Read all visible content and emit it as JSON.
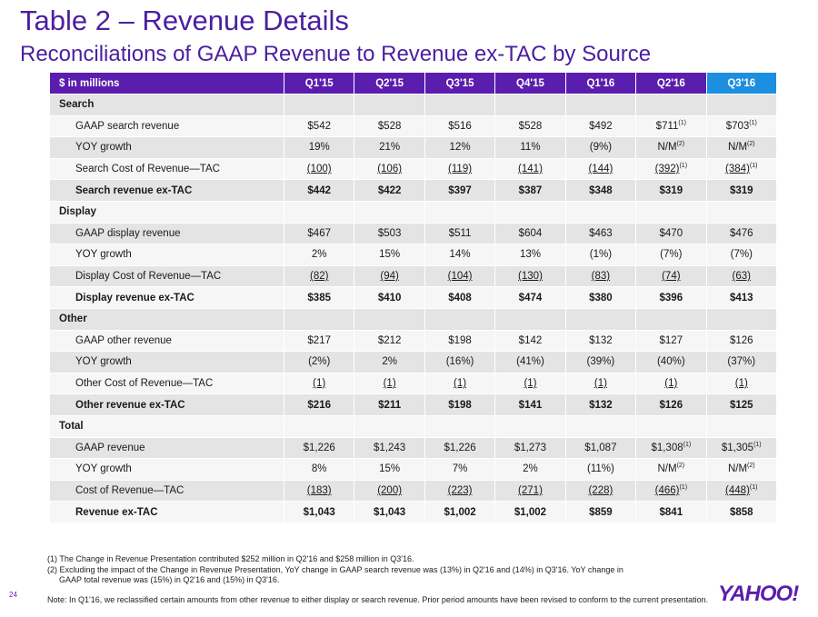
{
  "title": "Table 2 – Revenue Details",
  "subtitle": "Reconciliations of GAAP Revenue to Revenue ex-TAC by Source",
  "table": {
    "unit_label": "$ in millions",
    "columns": [
      "Q1'15",
      "Q2'15",
      "Q3'15",
      "Q4'15",
      "Q1'16",
      "Q2'16",
      "Q3'16"
    ],
    "highlight_color": "#1c8fe0",
    "header_color": "#5b1dae",
    "sections": [
      {
        "name": "Search",
        "rows": [
          {
            "label": "GAAP search revenue",
            "cells": [
              {
                "v": "$542"
              },
              {
                "v": "$528"
              },
              {
                "v": "$516"
              },
              {
                "v": "$528"
              },
              {
                "v": "$492"
              },
              {
                "v": "$711",
                "sup": "(1)"
              },
              {
                "v": "$703",
                "sup": "(1)"
              }
            ]
          },
          {
            "label": "YOY growth",
            "cells": [
              {
                "v": "19%"
              },
              {
                "v": "21%"
              },
              {
                "v": "12%"
              },
              {
                "v": "11%"
              },
              {
                "v": "(9%)"
              },
              {
                "v": "N/M",
                "sup": "(2)"
              },
              {
                "v": "N/M",
                "sup": "(2)"
              }
            ]
          },
          {
            "label": "Search Cost of Revenue—TAC",
            "underline": true,
            "cells": [
              {
                "v": "(100)"
              },
              {
                "v": "(106)"
              },
              {
                "v": "(119)"
              },
              {
                "v": "(141)"
              },
              {
                "v": "(144)"
              },
              {
                "v": "(392)",
                "sup": "(1)"
              },
              {
                "v": "(384)",
                "sup": "(1)"
              }
            ]
          },
          {
            "label": "Search revenue ex-TAC",
            "bold": true,
            "cells": [
              {
                "v": "$442"
              },
              {
                "v": "$422"
              },
              {
                "v": "$397"
              },
              {
                "v": "$387"
              },
              {
                "v": "$348"
              },
              {
                "v": "$319"
              },
              {
                "v": "$319"
              }
            ]
          }
        ]
      },
      {
        "name": "Display",
        "rows": [
          {
            "label": "GAAP display revenue",
            "cells": [
              {
                "v": "$467"
              },
              {
                "v": "$503"
              },
              {
                "v": "$511"
              },
              {
                "v": "$604"
              },
              {
                "v": "$463"
              },
              {
                "v": "$470"
              },
              {
                "v": "$476"
              }
            ]
          },
          {
            "label": "YOY growth",
            "cells": [
              {
                "v": "2%"
              },
              {
                "v": "15%"
              },
              {
                "v": "14%"
              },
              {
                "v": "13%"
              },
              {
                "v": "(1%)"
              },
              {
                "v": "(7%)"
              },
              {
                "v": "(7%)"
              }
            ]
          },
          {
            "label": "Display Cost of Revenue—TAC",
            "underline": true,
            "cells": [
              {
                "v": "(82)"
              },
              {
                "v": "(94)"
              },
              {
                "v": "(104)"
              },
              {
                "v": "(130)"
              },
              {
                "v": "(83)"
              },
              {
                "v": "(74)"
              },
              {
                "v": "(63)"
              }
            ]
          },
          {
            "label": "Display revenue ex-TAC",
            "bold": true,
            "cells": [
              {
                "v": "$385"
              },
              {
                "v": "$410"
              },
              {
                "v": "$408"
              },
              {
                "v": "$474"
              },
              {
                "v": "$380"
              },
              {
                "v": "$396"
              },
              {
                "v": "$413"
              }
            ]
          }
        ]
      },
      {
        "name": "Other",
        "rows": [
          {
            "label": "GAAP other revenue",
            "cells": [
              {
                "v": "$217"
              },
              {
                "v": "$212"
              },
              {
                "v": "$198"
              },
              {
                "v": "$142"
              },
              {
                "v": "$132"
              },
              {
                "v": "$127"
              },
              {
                "v": "$126"
              }
            ]
          },
          {
            "label": "YOY growth",
            "cells": [
              {
                "v": "(2%)"
              },
              {
                "v": "2%"
              },
              {
                "v": "(16%)"
              },
              {
                "v": "(41%)"
              },
              {
                "v": "(39%)"
              },
              {
                "v": "(40%)"
              },
              {
                "v": "(37%)"
              }
            ]
          },
          {
            "label": "Other Cost of Revenue—TAC",
            "underline": true,
            "cells": [
              {
                "v": "(1)"
              },
              {
                "v": "(1)"
              },
              {
                "v": "(1)"
              },
              {
                "v": "(1)"
              },
              {
                "v": "(1)"
              },
              {
                "v": "(1)"
              },
              {
                "v": "(1)"
              }
            ]
          },
          {
            "label": "Other revenue ex-TAC",
            "bold": true,
            "cells": [
              {
                "v": "$216"
              },
              {
                "v": "$211"
              },
              {
                "v": "$198"
              },
              {
                "v": "$141"
              },
              {
                "v": "$132"
              },
              {
                "v": "$126"
              },
              {
                "v": "$125"
              }
            ]
          }
        ]
      },
      {
        "name": "Total",
        "rows": [
          {
            "label": "GAAP revenue",
            "cells": [
              {
                "v": "$1,226"
              },
              {
                "v": "$1,243"
              },
              {
                "v": "$1,226"
              },
              {
                "v": "$1,273"
              },
              {
                "v": "$1,087"
              },
              {
                "v": "$1,308",
                "sup": "(1)"
              },
              {
                "v": "$1,305",
                "sup": "(1)"
              }
            ]
          },
          {
            "label": "YOY growth",
            "cells": [
              {
                "v": "8%"
              },
              {
                "v": "15%"
              },
              {
                "v": "7%"
              },
              {
                "v": "2%"
              },
              {
                "v": "(11%)"
              },
              {
                "v": "N/M",
                "sup": "(2)"
              },
              {
                "v": "N/M",
                "sup": "(2)"
              }
            ]
          },
          {
            "label": "Cost of Revenue—TAC",
            "underline": true,
            "cells": [
              {
                "v": "(183)"
              },
              {
                "v": "(200)"
              },
              {
                "v": "(223)"
              },
              {
                "v": "(271)"
              },
              {
                "v": "(228)"
              },
              {
                "v": "(466)",
                "sup": "(1)"
              },
              {
                "v": "(448)",
                "sup": "(1)"
              }
            ]
          },
          {
            "label": "Revenue ex-TAC",
            "bold": true,
            "cells": [
              {
                "v": "$1,043"
              },
              {
                "v": "$1,043"
              },
              {
                "v": "$1,002"
              },
              {
                "v": "$1,002"
              },
              {
                "v": "$859"
              },
              {
                "v": "$841"
              },
              {
                "v": "$858"
              }
            ]
          }
        ]
      }
    ]
  },
  "footnotes": {
    "note1": "(1) The Change in Revenue Presentation contributed $252 million in Q2'16 and $258 million in Q3'16.",
    "note2_line1": "(2) Excluding the impact of the Change in Revenue Presentation, YoY change in GAAP search revenue was (13%) in Q2'16 and (14%) in Q3'16. YoY change in",
    "note2_line2": "GAAP total revenue was (15%) in Q2'16 and (15%) in Q3'16.",
    "final_note": "Note: In Q1'16, we reclassified certain amounts from other revenue to either display or search revenue. Prior period amounts have been revised to conform to the current presentation."
  },
  "page_number": "24",
  "logo_text": "YAHOO!"
}
